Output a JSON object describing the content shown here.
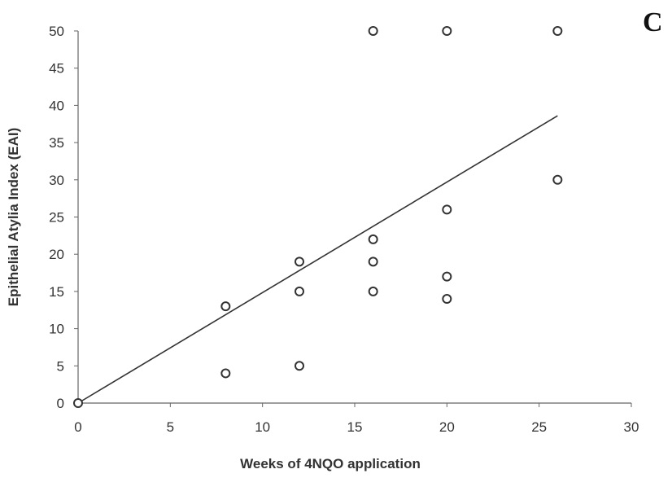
{
  "panel_label": "C",
  "chart_data": {
    "type": "scatter",
    "xlabel": "Weeks of 4NQO application",
    "ylabel": "Epithelial Atylia Index (EAI)",
    "xlim": [
      0,
      30
    ],
    "ylim": [
      0,
      50
    ],
    "x_ticks": [
      "0",
      "5",
      "10",
      "15",
      "20",
      "25",
      "30"
    ],
    "y_ticks": [
      "0",
      "5",
      "10",
      "15",
      "20",
      "25",
      "30",
      "35",
      "40",
      "45",
      "50"
    ],
    "grid": false,
    "marker": "open-circle",
    "points": [
      {
        "x": 0,
        "y": 0
      },
      {
        "x": 8,
        "y": 13
      },
      {
        "x": 8,
        "y": 4
      },
      {
        "x": 12,
        "y": 19
      },
      {
        "x": 12,
        "y": 15
      },
      {
        "x": 12,
        "y": 5
      },
      {
        "x": 16,
        "y": 50
      },
      {
        "x": 16,
        "y": 22
      },
      {
        "x": 16,
        "y": 19
      },
      {
        "x": 16,
        "y": 15
      },
      {
        "x": 20,
        "y": 50
      },
      {
        "x": 20,
        "y": 26
      },
      {
        "x": 20,
        "y": 17
      },
      {
        "x": 20,
        "y": 14
      },
      {
        "x": 26,
        "y": 50
      },
      {
        "x": 26,
        "y": 30
      }
    ],
    "trendline": {
      "x": [
        0,
        26
      ],
      "y": [
        0,
        38.6
      ]
    },
    "colors": {
      "marker": "#333333",
      "line": "#333333",
      "axis": "#666666"
    }
  }
}
